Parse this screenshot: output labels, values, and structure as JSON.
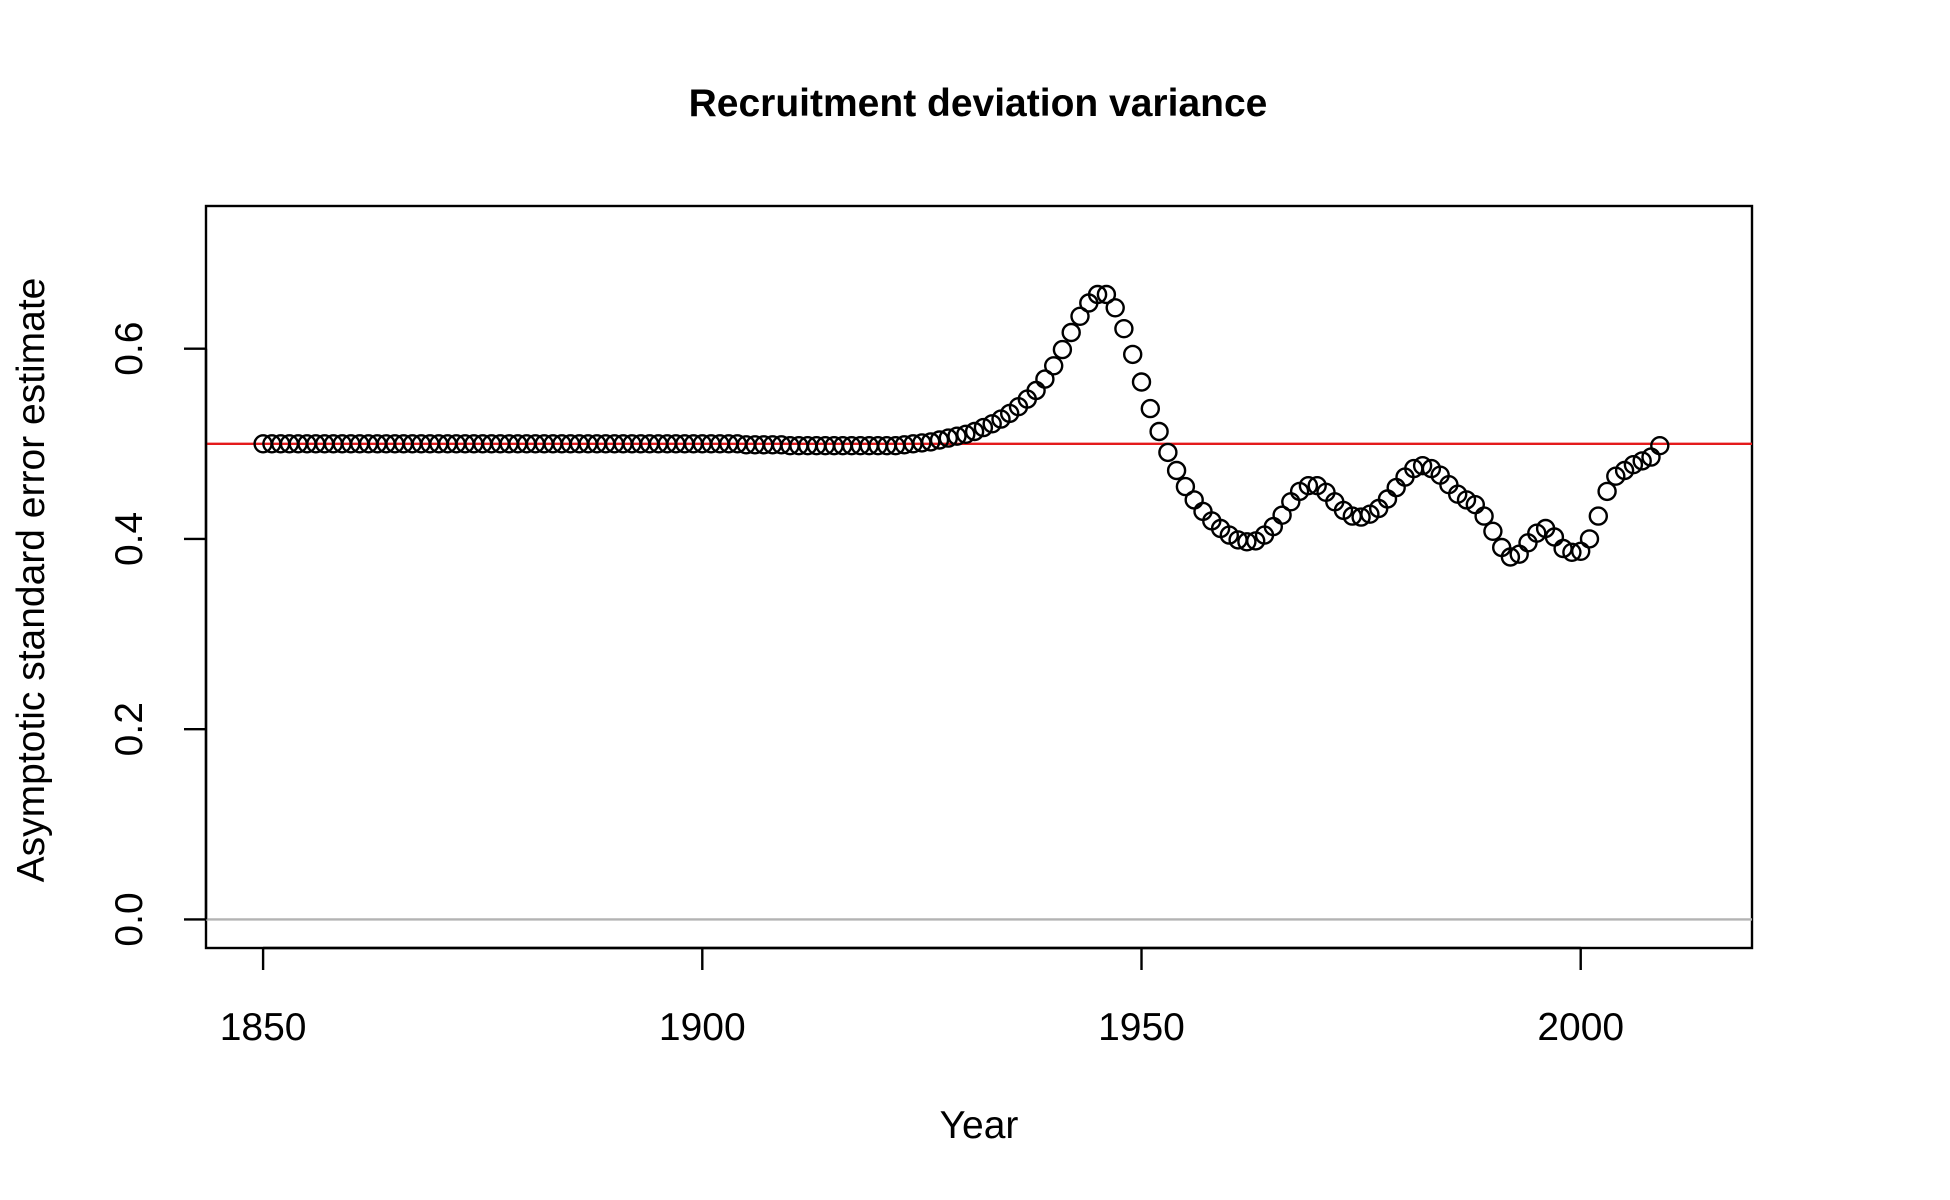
{
  "chart_data": {
    "type": "scatter",
    "title": "Recruitment deviation variance",
    "xlabel": "Year",
    "ylabel": "Asymptotic standard error estimate",
    "xlim": [
      1843.5,
      2019.5
    ],
    "ylim": [
      -0.03,
      0.75
    ],
    "xticks": [
      "1850",
      "1900",
      "1950",
      "2000"
    ],
    "yticks": [
      "0.0",
      "0.2",
      "0.4",
      "0.6"
    ],
    "grid": false,
    "legend": "none",
    "reference_lines": [
      {
        "y": 0.5,
        "color": "#e41a1c"
      },
      {
        "y": 0.0,
        "color": "#b3b3b3"
      }
    ],
    "series": [
      {
        "x_start": 1850,
        "x_step": 1,
        "marker": "open-circle",
        "values": [
          0.5,
          0.5,
          0.5,
          0.5,
          0.5,
          0.5,
          0.5,
          0.5,
          0.5,
          0.5,
          0.5,
          0.5,
          0.5,
          0.5,
          0.5,
          0.5,
          0.5,
          0.5,
          0.5,
          0.5,
          0.5,
          0.5,
          0.5,
          0.5,
          0.5,
          0.5,
          0.5,
          0.5,
          0.5,
          0.5,
          0.5,
          0.5,
          0.5,
          0.5,
          0.5,
          0.5,
          0.5,
          0.5,
          0.5,
          0.5,
          0.5,
          0.5,
          0.5,
          0.5,
          0.5,
          0.5,
          0.5,
          0.5,
          0.5,
          0.5,
          0.5,
          0.5,
          0.5,
          0.5,
          0.5,
          0.499,
          0.499,
          0.499,
          0.499,
          0.499,
          0.498,
          0.498,
          0.498,
          0.498,
          0.498,
          0.498,
          0.498,
          0.498,
          0.498,
          0.498,
          0.498,
          0.498,
          0.498,
          0.499,
          0.5,
          0.501,
          0.502,
          0.504,
          0.506,
          0.508,
          0.51,
          0.513,
          0.517,
          0.521,
          0.526,
          0.532,
          0.539,
          0.547,
          0.556,
          0.568,
          0.582,
          0.599,
          0.617,
          0.634,
          0.648,
          0.657,
          0.657,
          0.643,
          0.621,
          0.594,
          0.565,
          0.537,
          0.513,
          0.491,
          0.472,
          0.455,
          0.441,
          0.429,
          0.419,
          0.411,
          0.404,
          0.399,
          0.397,
          0.398,
          0.404,
          0.413,
          0.425,
          0.439,
          0.45,
          0.456,
          0.456,
          0.449,
          0.439,
          0.43,
          0.424,
          0.423,
          0.426,
          0.432,
          0.442,
          0.454,
          0.465,
          0.474,
          0.477,
          0.474,
          0.467,
          0.457,
          0.447,
          0.441,
          0.436,
          0.424,
          0.408,
          0.391,
          0.381,
          0.384,
          0.396,
          0.406,
          0.411,
          0.402,
          0.39,
          0.386,
          0.387,
          0.4,
          0.424,
          0.45,
          0.466,
          0.472,
          0.478,
          0.482,
          0.486,
          0.498
        ]
      }
    ]
  }
}
